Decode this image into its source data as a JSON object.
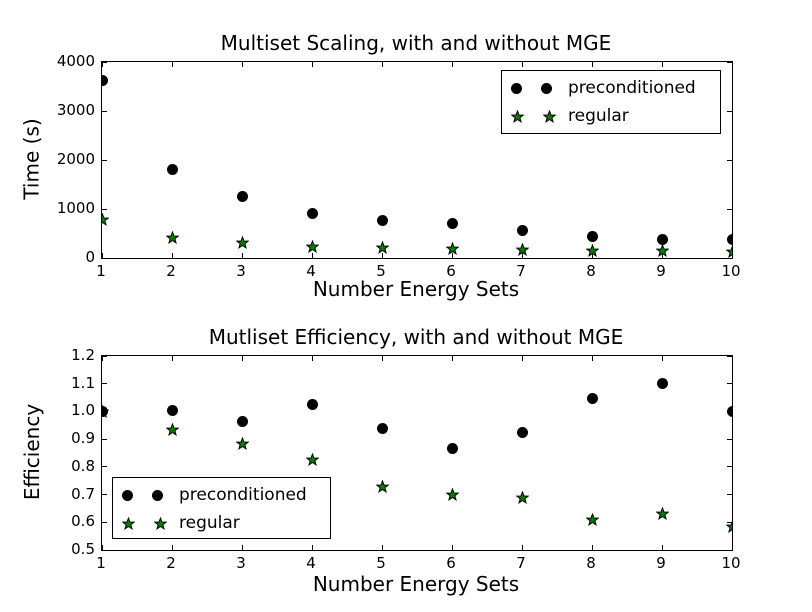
{
  "figure": {
    "background_color": "#ffffff",
    "axis_color": "#000000"
  },
  "chart_data": [
    {
      "type": "scatter",
      "title": "Multiset Scaling, with and without MGE",
      "xlabel": "Number Energy Sets",
      "ylabel": "Time (s)",
      "xlim": [
        1,
        10
      ],
      "ylim": [
        0,
        4000
      ],
      "xticks": [
        1,
        2,
        3,
        4,
        5,
        6,
        7,
        8,
        9,
        10
      ],
      "xtick_labels": [
        "1",
        "2",
        "3",
        "4",
        "5",
        "6",
        "7",
        "8",
        "9",
        "10"
      ],
      "yticks": [
        0,
        1000,
        2000,
        3000,
        4000
      ],
      "ytick_labels": [
        "0",
        "1000",
        "2000",
        "3000",
        "4000"
      ],
      "grid": false,
      "legend_position": "upper right",
      "x": [
        1,
        2,
        3,
        4,
        5,
        6,
        7,
        8,
        9,
        10
      ],
      "series": [
        {
          "name": "preconditioned",
          "marker": "circle",
          "color": "#000000",
          "edge_color": "#000000",
          "values": [
            3630,
            1810,
            1260,
            900,
            770,
            695,
            565,
            430,
            375,
            370
          ]
        },
        {
          "name": "regular",
          "marker": "star",
          "color": "#008000",
          "edge_color": "#000000",
          "values": [
            785,
            410,
            325,
            240,
            205,
            195,
            165,
            150,
            145,
            135
          ]
        }
      ]
    },
    {
      "type": "scatter",
      "title": "Mutliset Efficiency, with and without MGE",
      "xlabel": "Number Energy Sets",
      "ylabel": "Efficiency",
      "xlim": [
        1,
        10
      ],
      "ylim": [
        0.5,
        1.2
      ],
      "xticks": [
        1,
        2,
        3,
        4,
        5,
        6,
        7,
        8,
        9,
        10
      ],
      "xtick_labels": [
        "1",
        "2",
        "3",
        "4",
        "5",
        "6",
        "7",
        "8",
        "9",
        "10"
      ],
      "yticks": [
        0.5,
        0.6,
        0.7,
        0.8,
        0.9,
        1.0,
        1.1,
        1.2
      ],
      "ytick_labels": [
        "0.5",
        "0.6",
        "0.7",
        "0.8",
        "0.9",
        "1.0",
        "1.1",
        "1.2"
      ],
      "grid": false,
      "legend_position": "lower left",
      "x": [
        1,
        2,
        3,
        4,
        5,
        6,
        7,
        8,
        9,
        10
      ],
      "series": [
        {
          "name": "preconditioned",
          "marker": "circle",
          "color": "#000000",
          "edge_color": "#000000",
          "values": [
            1.0,
            1.005,
            0.965,
            1.025,
            0.94,
            0.865,
            0.925,
            1.045,
            1.1,
            1.0
          ]
        },
        {
          "name": "regular",
          "marker": "star",
          "color": "#008000",
          "edge_color": "#000000",
          "values": [
            1.0,
            0.935,
            0.885,
            0.825,
            0.73,
            0.7,
            0.69,
            0.61,
            0.63,
            0.585
          ]
        }
      ]
    }
  ]
}
